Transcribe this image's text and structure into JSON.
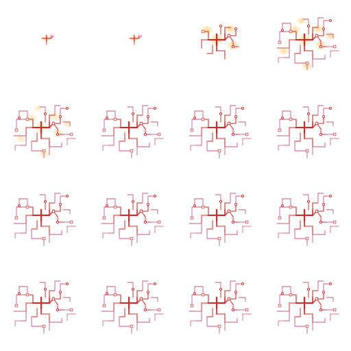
{
  "colors": {
    "background": "#ffffff",
    "trace": "#d62828",
    "trace_light": "#e05a5a",
    "trace_faint": "#c65a72",
    "glow": "#ffc76a"
  },
  "frames": [
    {
      "stage": 1,
      "growth": 0.08,
      "glow": 1.0
    },
    {
      "stage": 2,
      "growth": 0.08,
      "glow": 1.0
    },
    {
      "stage": 3,
      "growth": 0.55,
      "glow": 0.9
    },
    {
      "stage": 4,
      "growth": 0.85,
      "glow": 0.8
    },
    {
      "stage": 5,
      "growth": 1.0,
      "glow": 0.55
    },
    {
      "stage": 6,
      "growth": 1.0,
      "glow": 0.0
    },
    {
      "stage": 7,
      "growth": 1.0,
      "glow": 0.0
    },
    {
      "stage": 8,
      "growth": 1.0,
      "glow": 0.0
    },
    {
      "stage": 9,
      "growth": 1.0,
      "glow": 0.0
    },
    {
      "stage": 10,
      "growth": 1.0,
      "glow": 0.0
    },
    {
      "stage": 11,
      "growth": 1.0,
      "glow": 0.0
    },
    {
      "stage": 12,
      "growth": 1.0,
      "glow": 0.0
    },
    {
      "stage": 13,
      "growth": 1.0,
      "glow": 0.0
    },
    {
      "stage": 14,
      "growth": 1.0,
      "glow": 0.0
    },
    {
      "stage": 15,
      "growth": 1.0,
      "glow": 0.0
    },
    {
      "stage": 16,
      "growth": 1.0,
      "glow": 0.0
    }
  ]
}
